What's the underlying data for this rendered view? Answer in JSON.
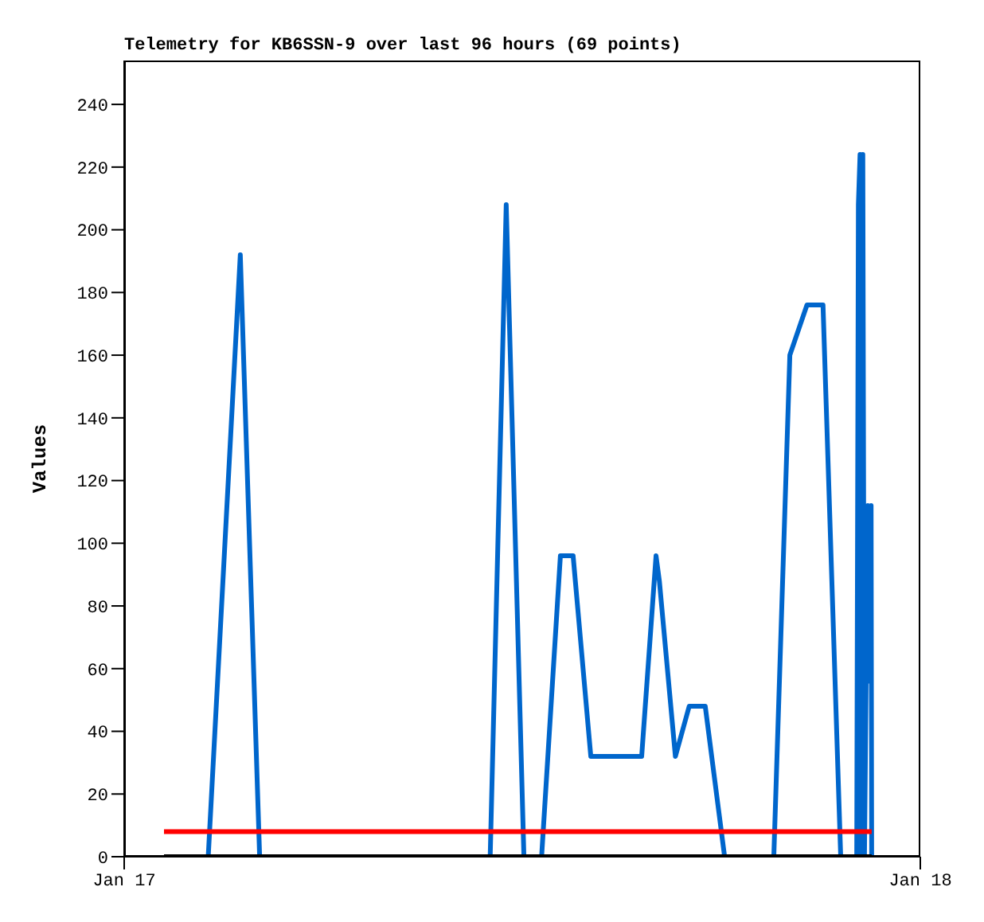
{
  "chart_data": {
    "type": "line",
    "title": "Telemetry for KB6SSN-9 over last 96 hours (69 points)",
    "ylabel": "Values",
    "xlim": [
      "--01-17",
      "--01-18"
    ],
    "xticks": [
      {
        "value": "--01-17",
        "label": "Jan 17"
      },
      {
        "value": "--01-18",
        "label": "Jan 18"
      }
    ],
    "ylim": [
      0,
      254
    ],
    "yticks": [
      0,
      20,
      40,
      60,
      80,
      100,
      120,
      140,
      160,
      180,
      200,
      220,
      240
    ],
    "marker": "none",
    "series": [
      {
        "color": "#0066cc",
        "x": [
          "--01-17T01:12",
          "--01-17T02:32",
          "--01-17T03:30",
          "--01-17T04:05",
          "--01-17T11:02",
          "--01-17T11:31",
          "--01-17T12:03",
          "--01-17T12:35",
          "--01-17T13:09",
          "--01-17T13:32",
          "--01-17T14:04",
          "--01-17T15:36",
          "--01-17T16:02",
          "--01-17T16:08",
          "--01-17T16:37",
          "--01-17T17:02",
          "--01-17T17:31",
          "--01-17T18:06",
          "--01-17T19:35",
          "--01-17T20:04",
          "--01-17T20:35",
          "--01-17T21:04",
          "--01-17T21:36",
          "--01-17T22:05",
          "--01-17T22:08",
          "--01-17T22:11",
          "--01-17T22:13",
          "--01-17T22:16",
          "--01-17T22:19",
          "--01-17T22:25",
          "--01-17T22:28",
          "--01-17T22:31",
          "--01-17T22:32"
        ],
        "values": [
          0,
          0,
          192,
          0,
          0,
          208,
          0,
          0,
          96,
          96,
          32,
          32,
          96,
          88,
          32,
          48,
          48,
          0,
          0,
          160,
          176,
          176,
          0,
          0,
          208,
          224,
          0,
          224,
          0,
          112,
          56,
          112,
          0
        ]
      },
      {
        "color": "#ff0000",
        "x": [
          "--01-17T01:12",
          "--01-17T22:32"
        ],
        "values": [
          8,
          8
        ]
      },
      {
        "color": "#000000",
        "x": [
          "--01-17T01:12",
          "--01-17T22:32"
        ],
        "values": [
          0,
          0
        ]
      }
    ]
  }
}
